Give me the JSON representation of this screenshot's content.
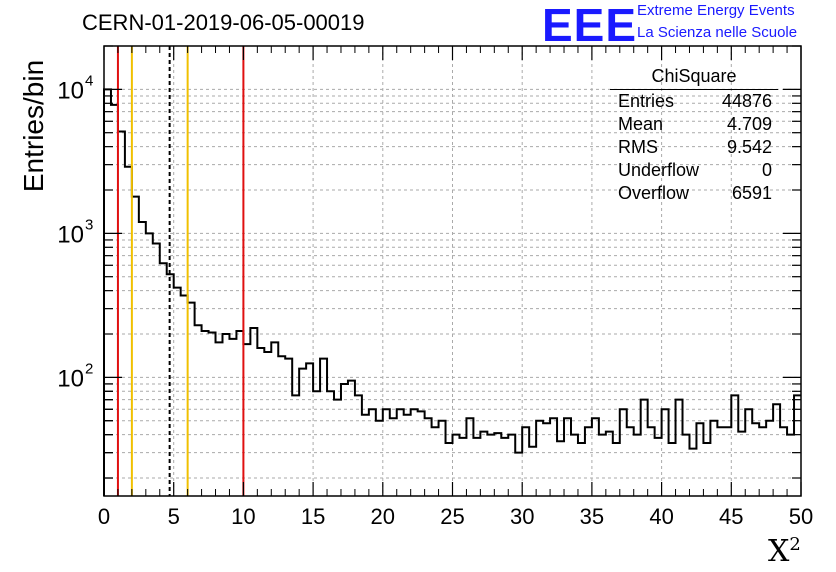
{
  "title": "CERN-01-2019-06-05-00019",
  "logo": {
    "text": "EEE",
    "line1": "Extreme Energy Events",
    "line2": "La Scienza nelle Scuole"
  },
  "colors": {
    "logo": "#1a1aff",
    "red_line": "#e01010",
    "yellow_line": "#f0c000",
    "mean_line": "#000000",
    "histogram": "#000000",
    "grid": "#aaaaaa"
  },
  "stats": {
    "title": "ChiSquare",
    "rows": [
      {
        "label": "Entries",
        "value": "44876"
      },
      {
        "label": "Mean",
        "value": "4.709"
      },
      {
        "label": "RMS",
        "value": "9.542"
      },
      {
        "label": "Underflow",
        "value": "0"
      },
      {
        "label": "Overflow",
        "value": "6591"
      }
    ]
  },
  "chart_data": {
    "type": "histogram",
    "title": "CERN-01-2019-06-05-00019",
    "xlabel": "X",
    "xlabel_sup": "2",
    "ylabel": "Entries/bin",
    "xlim": [
      0,
      50
    ],
    "ylim": [
      15,
      20000
    ],
    "yscale": "log",
    "grid": true,
    "x_ticks": [
      "0",
      "5",
      "10",
      "15",
      "20",
      "25",
      "30",
      "35",
      "40",
      "45",
      "50"
    ],
    "y_ticks": [
      {
        "base": "10",
        "exp": "2",
        "value": 100
      },
      {
        "base": "10",
        "exp": "3",
        "value": 1000
      },
      {
        "base": "10",
        "exp": "4",
        "value": 10000
      }
    ],
    "bin_width": 0.5,
    "values": [
      10000,
      7800,
      5100,
      2900,
      1800,
      1200,
      1000,
      850,
      620,
      520,
      420,
      370,
      330,
      230,
      210,
      205,
      175,
      200,
      185,
      210,
      170,
      220,
      160,
      150,
      175,
      140,
      135,
      75,
      115,
      125,
      80,
      135,
      80,
      70,
      90,
      95,
      75,
      55,
      60,
      50,
      60,
      52,
      60,
      55,
      60,
      58,
      52,
      45,
      50,
      35,
      40,
      38,
      52,
      38,
      42,
      40,
      41,
      38,
      40,
      30,
      45,
      33,
      50,
      48,
      52,
      36,
      52,
      40,
      35,
      45,
      52,
      40,
      42,
      35,
      60,
      45,
      40,
      70,
      45,
      38,
      60,
      35,
      70,
      40,
      32,
      48,
      35,
      50,
      45,
      45,
      75,
      42,
      60,
      48,
      45,
      50,
      65,
      45,
      40,
      75
    ],
    "vertical_lines": [
      {
        "x": 1,
        "color": "#e01010",
        "style": "solid"
      },
      {
        "x": 2,
        "color": "#f0c000",
        "style": "solid"
      },
      {
        "x": 4.709,
        "color": "#000000",
        "style": "dashed"
      },
      {
        "x": 6,
        "color": "#f0c000",
        "style": "solid"
      },
      {
        "x": 10,
        "color": "#e01010",
        "style": "solid"
      }
    ]
  }
}
